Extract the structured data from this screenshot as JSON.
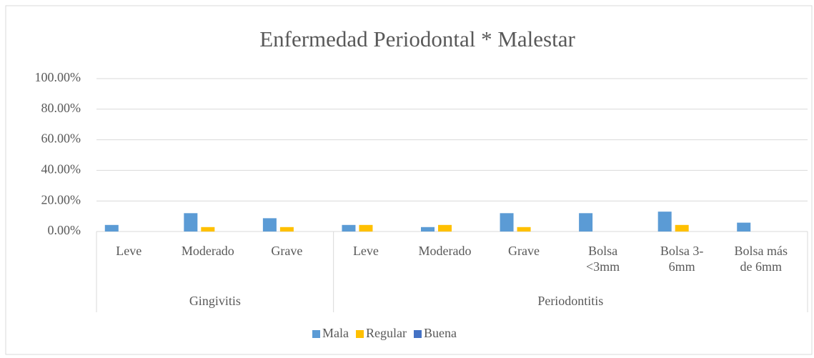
{
  "chart_data": {
    "type": "bar",
    "title": "Enfermedad Periodontal * Malestar",
    "groups": [
      {
        "name": "Gingivitis",
        "categories": [
          "Leve",
          "Moderado",
          "Grave"
        ]
      },
      {
        "name": "Periodontitis",
        "categories": [
          "Leve",
          "Moderado",
          "Grave",
          "Bolsa <3mm",
          "Bolsa 3-6mm",
          "Bolsa más de 6mm"
        ]
      }
    ],
    "series": [
      {
        "name": "Mala",
        "color": "#5b9bd5",
        "values": [
          4.3,
          12,
          8.7,
          4.3,
          2.9,
          12,
          12,
          13,
          5.8
        ]
      },
      {
        "name": "Regular",
        "color": "#ffc000",
        "values": [
          0,
          2.9,
          2.9,
          4.3,
          4.3,
          2.9,
          0,
          4.3,
          0
        ]
      },
      {
        "name": "Buena",
        "color": "#4472c4",
        "values": [
          0,
          0,
          0,
          0,
          0,
          0,
          0,
          0,
          0
        ]
      }
    ],
    "ylim": [
      0,
      100
    ],
    "yticks": [
      {
        "value": 0,
        "label": "0.00%"
      },
      {
        "value": 20,
        "label": "20.00%"
      },
      {
        "value": 40,
        "label": "40.00%"
      },
      {
        "value": 60,
        "label": "60.00%"
      },
      {
        "value": 80,
        "label": "80.00%"
      },
      {
        "value": 100,
        "label": "100.00%"
      }
    ],
    "grid": true,
    "legend": "bottom"
  }
}
